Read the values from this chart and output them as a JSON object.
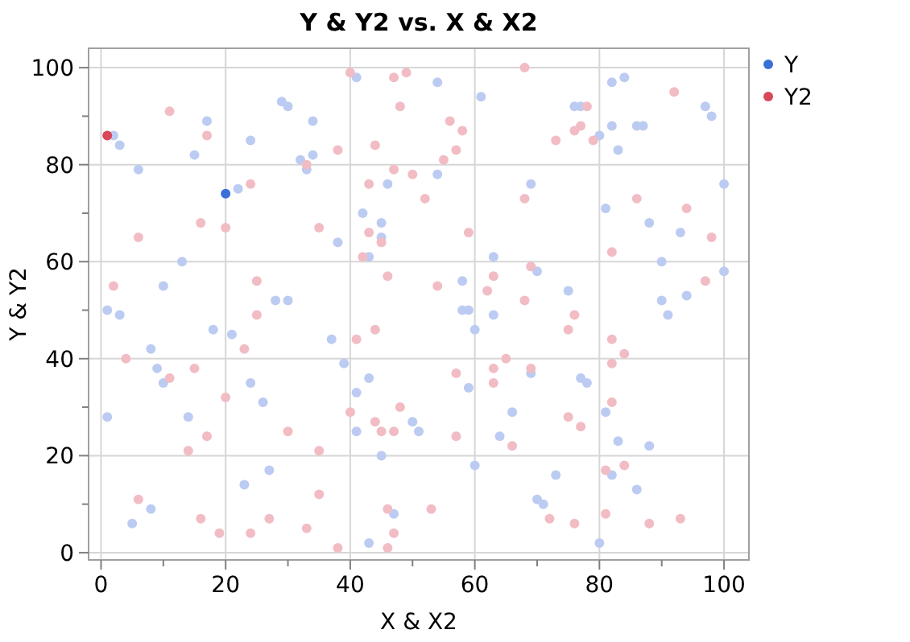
{
  "chart_data": {
    "type": "scatter",
    "title": "Y & Y2 vs. X & X2",
    "xlabel": "X & X2",
    "ylabel": "Y & Y2",
    "xlim": [
      -2,
      104
    ],
    "ylim": [
      -1.5,
      104
    ],
    "xticks": [
      0,
      {
        "value": 10,
        "label": null
      },
      20,
      {
        "value": 30,
        "label": null
      },
      40,
      {
        "value": 50,
        "label": null
      },
      60,
      {
        "value": 70,
        "label": null
      },
      80,
      {
        "value": 90,
        "label": null
      },
      100
    ],
    "yticks": [
      0,
      {
        "value": 10,
        "label": null
      },
      20,
      {
        "value": 30,
        "label": null
      },
      40,
      {
        "value": 50,
        "label": null
      },
      60,
      {
        "value": 70,
        "label": null
      },
      80,
      {
        "value": 90,
        "label": null
      },
      100
    ],
    "grid": true,
    "legend": "top right",
    "marker": "circle",
    "series": [
      {
        "name": "Y",
        "color": "#3a6fd8",
        "x": [
          2,
          3,
          6,
          17,
          15,
          24,
          22,
          20,
          29,
          30,
          34,
          32,
          33,
          34,
          41,
          38,
          42,
          45,
          45,
          43,
          46,
          13,
          10,
          1,
          3,
          28,
          30,
          1,
          8,
          9,
          10,
          5,
          8,
          14,
          18,
          21,
          24,
          26,
          23,
          27,
          37,
          39,
          43,
          41,
          41,
          45,
          47,
          43,
          50,
          54,
          61,
          76,
          77,
          82,
          84,
          97,
          98,
          80,
          82,
          86,
          87,
          83,
          54,
          69,
          100,
          81,
          88,
          93,
          63,
          70,
          58,
          75,
          90,
          100,
          94,
          90,
          58,
          59,
          63,
          91,
          60,
          69,
          59,
          77,
          78,
          66,
          81,
          51,
          64,
          83,
          88,
          60,
          73,
          82,
          86,
          70,
          71,
          80
        ],
        "values": [
          86,
          84,
          79,
          89,
          82,
          85,
          75,
          74,
          93,
          92,
          89,
          81,
          79,
          82,
          98,
          64,
          70,
          68,
          65,
          61,
          76,
          60,
          55,
          50,
          49,
          52,
          52,
          28,
          42,
          38,
          35,
          6,
          9,
          28,
          46,
          45,
          35,
          31,
          14,
          17,
          44,
          39,
          36,
          33,
          25,
          20,
          8,
          2,
          27,
          97,
          94,
          92,
          92,
          97,
          98,
          92,
          90,
          86,
          88,
          88,
          88,
          83,
          78,
          76,
          76,
          71,
          68,
          66,
          61,
          58,
          56,
          54,
          60,
          58,
          53,
          52,
          50,
          50,
          49,
          49,
          46,
          37,
          34,
          36,
          35,
          29,
          29,
          25,
          24,
          23,
          22,
          18,
          16,
          16,
          13,
          11,
          10,
          2
        ],
        "colors": [
          "#bccbf2",
          "#bccbf2",
          "#bccbf2",
          "#bccbf2",
          "#bccbf2",
          "#bccbf2",
          "#bccbf2",
          "#3a6fd8",
          "#bccbf2",
          "#bccbf2",
          "#bccbf2",
          "#bccbf2",
          "#bccbf2",
          "#bccbf2",
          "#bccbf2",
          "#bccbf2",
          "#bccbf2",
          "#bccbf2",
          "#bccbf2",
          "#bccbf2",
          "#bccbf2",
          "#bccbf2",
          "#bccbf2",
          "#bccbf2",
          "#bccbf2",
          "#bccbf2",
          "#bccbf2",
          "#bccbf2",
          "#bccbf2",
          "#bccbf2",
          "#bccbf2",
          "#bccbf2",
          "#bccbf2",
          "#bccbf2",
          "#bccbf2",
          "#bccbf2",
          "#bccbf2",
          "#bccbf2",
          "#bccbf2",
          "#bccbf2",
          "#bccbf2",
          "#bccbf2",
          "#bccbf2",
          "#bccbf2",
          "#bccbf2",
          "#bccbf2",
          "#bccbf2",
          "#bccbf2",
          "#bccbf2",
          "#bccbf2",
          "#bccbf2",
          "#bccbf2",
          "#bccbf2",
          "#bccbf2",
          "#bccbf2",
          "#bccbf2",
          "#bccbf2",
          "#bccbf2",
          "#bccbf2",
          "#bccbf2",
          "#bccbf2",
          "#bccbf2",
          "#bccbf2",
          "#bccbf2",
          "#bccbf2",
          "#bccbf2",
          "#bccbf2",
          "#bccbf2",
          "#bccbf2",
          "#bccbf2",
          "#bccbf2",
          "#bccbf2",
          "#bccbf2",
          "#bccbf2",
          "#bccbf2",
          "#bccbf2",
          "#bccbf2",
          "#bccbf2",
          "#bccbf2",
          "#bccbf2",
          "#bccbf2",
          "#bccbf2",
          "#bccbf2",
          "#bccbf2",
          "#bccbf2",
          "#bccbf2",
          "#bccbf2",
          "#bccbf2",
          "#bccbf2",
          "#bccbf2",
          "#bccbf2",
          "#bccbf2",
          "#bccbf2",
          "#bccbf2",
          "#bccbf2",
          "#bccbf2",
          "#bccbf2",
          "#bccbf2"
        ]
      },
      {
        "name": "Y2",
        "color": "#d8475a",
        "x": [
          1,
          11,
          17,
          6,
          16,
          20,
          24,
          25,
          2,
          40,
          38,
          33,
          35,
          44,
          43,
          47,
          43,
          45,
          42,
          46,
          47,
          49,
          48,
          50,
          25,
          56,
          58,
          57,
          55,
          52,
          59,
          68,
          68,
          73,
          76,
          77,
          78,
          79,
          92,
          86,
          94,
          98,
          82,
          97,
          54,
          63,
          69,
          62,
          68,
          76,
          75,
          82,
          84,
          82,
          65,
          63,
          69,
          63,
          57,
          82,
          75,
          77,
          48,
          57,
          66,
          81,
          84,
          53,
          72,
          76,
          81,
          88,
          93,
          4,
          11,
          15,
          20,
          23,
          14,
          17,
          6,
          16,
          19,
          24,
          27,
          30,
          35,
          35,
          33,
          38,
          41,
          44,
          40,
          44,
          45,
          47,
          46,
          47,
          46
        ],
        "values": [
          86,
          91,
          86,
          65,
          68,
          67,
          76,
          56,
          55,
          99,
          83,
          80,
          67,
          84,
          76,
          79,
          66,
          64,
          61,
          57,
          98,
          99,
          92,
          78,
          49,
          89,
          87,
          83,
          81,
          73,
          66,
          100,
          73,
          85,
          87,
          88,
          92,
          85,
          95,
          73,
          71,
          65,
          62,
          56,
          55,
          57,
          59,
          54,
          52,
          49,
          46,
          44,
          41,
          39,
          40,
          38,
          38,
          35,
          37,
          31,
          28,
          26,
          30,
          24,
          22,
          17,
          18,
          9,
          7,
          6,
          8,
          6,
          7,
          40,
          36,
          38,
          32,
          42,
          21,
          24,
          11,
          7,
          4,
          4,
          7,
          25,
          21,
          12,
          5,
          1,
          44,
          46,
          29,
          27,
          25,
          25,
          9,
          4,
          1
        ],
        "colors": [
          "#d8475a",
          "#f2bcc4",
          "#f2bcc4",
          "#f2bcc4",
          "#f2bcc4",
          "#f2bcc4",
          "#f2bcc4",
          "#f2bcc4",
          "#f2bcc4",
          "#f2bcc4",
          "#f2bcc4",
          "#f2bcc4",
          "#f2bcc4",
          "#f2bcc4",
          "#f2bcc4",
          "#f2bcc4",
          "#f2bcc4",
          "#f2bcc4",
          "#f2bcc4",
          "#f2bcc4",
          "#f2bcc4",
          "#f2bcc4",
          "#f2bcc4",
          "#f2bcc4",
          "#f2bcc4",
          "#f2bcc4",
          "#f2bcc4",
          "#f2bcc4",
          "#f2bcc4",
          "#f2bcc4",
          "#f2bcc4",
          "#f2bcc4",
          "#f2bcc4",
          "#f2bcc4",
          "#f2bcc4",
          "#f2bcc4",
          "#f2bcc4",
          "#f2bcc4",
          "#f2bcc4",
          "#f2bcc4",
          "#f2bcc4",
          "#f2bcc4",
          "#f2bcc4",
          "#f2bcc4",
          "#f2bcc4",
          "#f2bcc4",
          "#f2bcc4",
          "#f2bcc4",
          "#f2bcc4",
          "#f2bcc4",
          "#f2bcc4",
          "#f2bcc4",
          "#f2bcc4",
          "#f2bcc4",
          "#f2bcc4",
          "#f2bcc4",
          "#f2bcc4",
          "#f2bcc4",
          "#f2bcc4",
          "#f2bcc4",
          "#f2bcc4",
          "#f2bcc4",
          "#f2bcc4",
          "#f2bcc4",
          "#f2bcc4",
          "#f2bcc4",
          "#f2bcc4",
          "#f2bcc4",
          "#f2bcc4",
          "#f2bcc4",
          "#f2bcc4",
          "#f2bcc4",
          "#f2bcc4",
          "#f2bcc4",
          "#f2bcc4",
          "#f2bcc4",
          "#f2bcc4",
          "#f2bcc4",
          "#f2bcc4",
          "#f2bcc4",
          "#f2bcc4",
          "#f2bcc4",
          "#f2bcc4",
          "#f2bcc4",
          "#f2bcc4",
          "#f2bcc4",
          "#f2bcc4",
          "#f2bcc4",
          "#f2bcc4",
          "#f2bcc4",
          "#f2bcc4",
          "#f2bcc4",
          "#f2bcc4",
          "#f2bcc4",
          "#f2bcc4",
          "#f2bcc4",
          "#f2bcc4",
          "#f2bcc4",
          "#f2bcc4"
        ]
      }
    ]
  }
}
